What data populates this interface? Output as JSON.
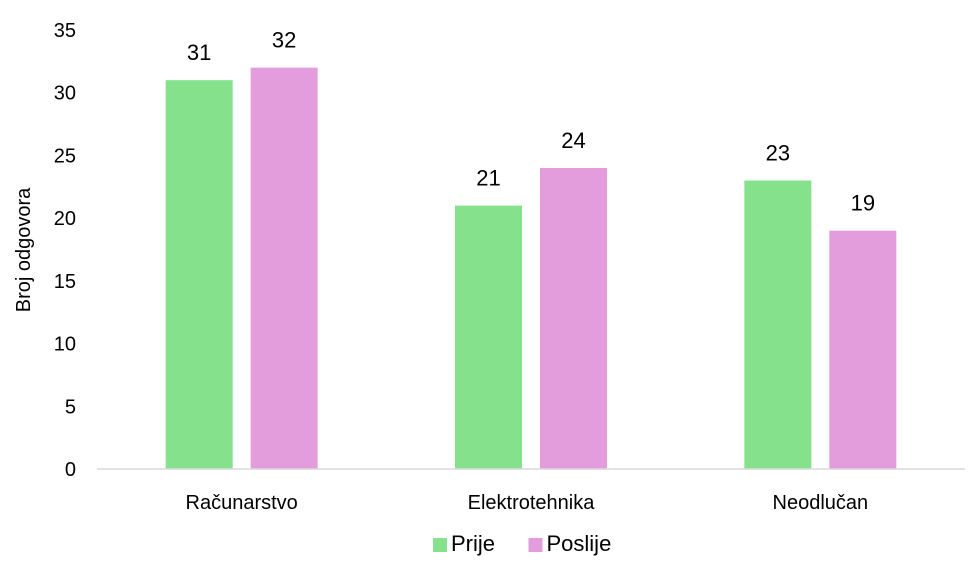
{
  "chart_data": {
    "type": "bar",
    "title": "",
    "xlabel": "",
    "ylabel": "Broj odgovora",
    "categories": [
      "Računarstvo",
      "Elektrotehnika",
      "Neodlučan"
    ],
    "series": [
      {
        "name": "Prije",
        "values": [
          31,
          21,
          23
        ],
        "color": "#86E18C"
      },
      {
        "name": "Poslije",
        "values": [
          32,
          24,
          19
        ],
        "color": "#E39CDC"
      }
    ],
    "ylim": [
      0,
      35
    ],
    "yticks": [
      0,
      5,
      10,
      15,
      20,
      25,
      30,
      35
    ],
    "grid": false,
    "legend": "bottom-center",
    "data_labels": true
  }
}
